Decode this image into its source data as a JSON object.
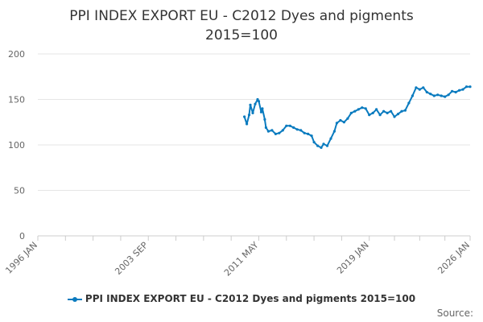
{
  "chart_data": {
    "type": "line",
    "title_lines": [
      "PPI INDEX EXPORT EU - C2012 Dyes and pigments",
      "2015=100"
    ],
    "xlabel": "",
    "ylabel": "",
    "ylim": [
      0,
      200
    ],
    "yticks": [
      0,
      50,
      100,
      150,
      200
    ],
    "xlim": [
      "1996-01",
      "2026-01"
    ],
    "xticks": [
      "1996 JAN",
      "2003 SEP",
      "2011 MAY",
      "2019 JAN",
      "2026 JAN"
    ],
    "grid": true,
    "legend_position": "bottom",
    "series": [
      {
        "name": "PPI INDEX EXPORT EU - C2012 Dyes and pigments 2015=100",
        "color": "#0a7bbf",
        "points": [
          [
            "2010-05",
            131
          ],
          [
            "2010-07",
            123
          ],
          [
            "2010-09",
            133
          ],
          [
            "2010-10",
            144
          ],
          [
            "2010-12",
            135
          ],
          [
            "2011-02",
            145
          ],
          [
            "2011-04",
            150
          ],
          [
            "2011-05",
            148
          ],
          [
            "2011-07",
            136
          ],
          [
            "2011-08",
            140
          ],
          [
            "2011-10",
            128
          ],
          [
            "2011-11",
            119
          ],
          [
            "2012-01",
            115
          ],
          [
            "2012-04",
            116
          ],
          [
            "2012-07",
            112
          ],
          [
            "2012-10",
            113
          ],
          [
            "2013-01",
            116
          ],
          [
            "2013-04",
            121
          ],
          [
            "2013-07",
            121
          ],
          [
            "2013-10",
            119
          ],
          [
            "2014-01",
            117
          ],
          [
            "2014-04",
            116
          ],
          [
            "2014-07",
            113
          ],
          [
            "2014-10",
            112
          ],
          [
            "2015-01",
            110
          ],
          [
            "2015-03",
            103
          ],
          [
            "2015-06",
            99
          ],
          [
            "2015-09",
            97
          ],
          [
            "2015-11",
            101
          ],
          [
            "2016-02",
            99
          ],
          [
            "2016-05",
            107
          ],
          [
            "2016-08",
            115
          ],
          [
            "2016-10",
            124
          ],
          [
            "2017-01",
            127
          ],
          [
            "2017-04",
            125
          ],
          [
            "2017-07",
            129
          ],
          [
            "2017-10",
            135
          ],
          [
            "2018-01",
            137
          ],
          [
            "2018-04",
            139
          ],
          [
            "2018-07",
            141
          ],
          [
            "2018-10",
            140
          ],
          [
            "2019-01",
            133
          ],
          [
            "2019-04",
            135
          ],
          [
            "2019-07",
            139
          ],
          [
            "2019-10",
            133
          ],
          [
            "2020-01",
            137
          ],
          [
            "2020-04",
            135
          ],
          [
            "2020-07",
            137
          ],
          [
            "2020-10",
            131
          ],
          [
            "2021-01",
            134
          ],
          [
            "2021-04",
            137
          ],
          [
            "2021-07",
            138
          ],
          [
            "2021-10",
            146
          ],
          [
            "2022-01",
            154
          ],
          [
            "2022-04",
            163
          ],
          [
            "2022-07",
            161
          ],
          [
            "2022-10",
            163
          ],
          [
            "2023-01",
            158
          ],
          [
            "2023-04",
            156
          ],
          [
            "2023-07",
            154
          ],
          [
            "2023-10",
            155
          ],
          [
            "2024-01",
            154
          ],
          [
            "2024-04",
            153
          ],
          [
            "2024-07",
            155
          ],
          [
            "2024-10",
            159
          ],
          [
            "2025-01",
            158
          ],
          [
            "2025-04",
            160
          ],
          [
            "2025-07",
            161
          ],
          [
            "2025-10",
            164
          ],
          [
            "2026-01",
            164
          ]
        ]
      }
    ]
  },
  "footer": {
    "source_label": "Source:"
  }
}
